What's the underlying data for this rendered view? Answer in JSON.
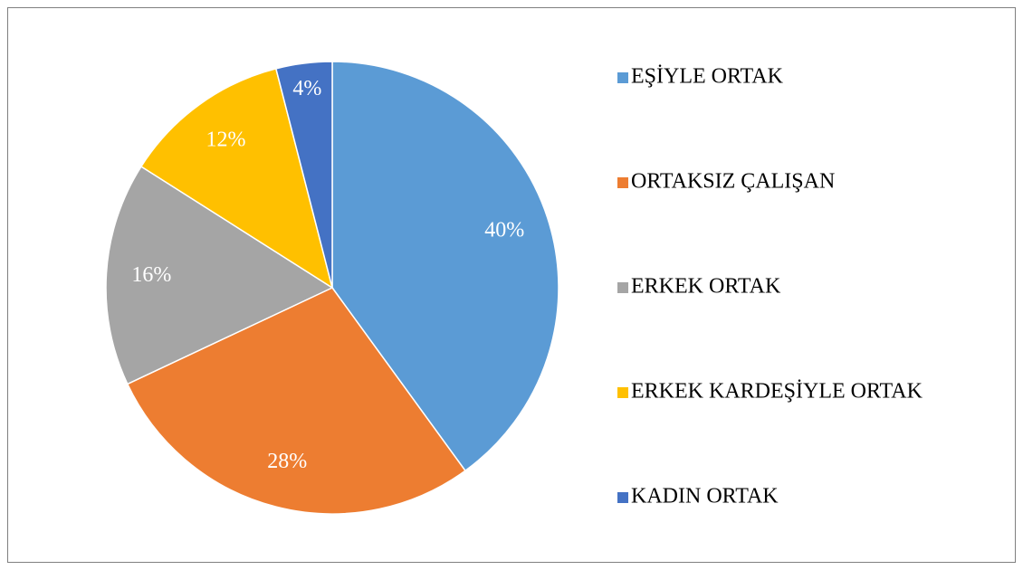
{
  "chart_data": {
    "type": "pie",
    "categories": [
      "EŞİYLE ORTAK",
      "ORTAKSIZ ÇALIŞAN",
      "ERKEK ORTAK",
      "ERKEK KARDEŞİYLE ORTAK",
      "KADIN ORTAK"
    ],
    "values": [
      40,
      28,
      16,
      12,
      4
    ],
    "value_labels": [
      "40%",
      "28%",
      "16%",
      "12%",
      "4%"
    ],
    "colors": [
      "#5b9bd5",
      "#ed7d31",
      "#a5a5a5",
      "#ffc000",
      "#4472c4"
    ],
    "legend": "right"
  }
}
